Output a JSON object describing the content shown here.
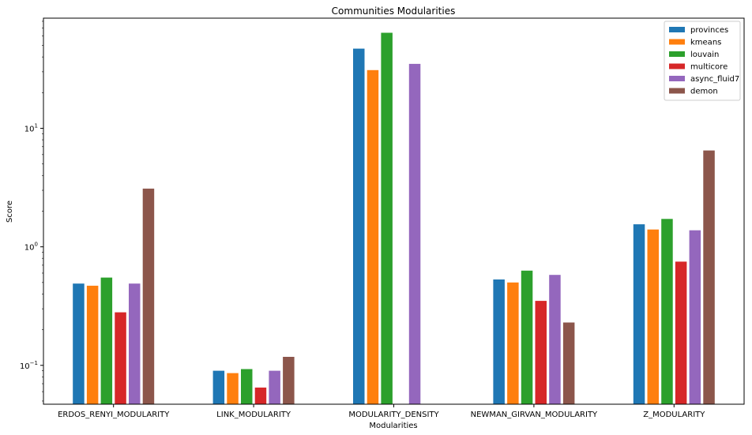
{
  "chart_data": {
    "type": "bar",
    "title": "Communities Modularities",
    "xlabel": "Modularities",
    "ylabel": "Score",
    "yscale": "log",
    "ylim": [
      0.047,
      85
    ],
    "yticks": [
      {
        "value": 0.1,
        "base": "10",
        "exp": "−1"
      },
      {
        "value": 1,
        "base": "10",
        "exp": "0"
      },
      {
        "value": 10,
        "base": "10",
        "exp": "1"
      }
    ],
    "categories": [
      "ERDOS_RENYI_MODULARITY",
      "LINK_MODULARITY",
      "MODULARITY_DENSITY",
      "NEWMAN_GIRVAN_MODULARITY",
      "Z_MODULARITY"
    ],
    "series": [
      {
        "name": "provinces",
        "color": "#1f77b4",
        "values": [
          0.49,
          0.09,
          47,
          0.53,
          1.55
        ]
      },
      {
        "name": "kmeans",
        "color": "#ff7f0e",
        "values": [
          0.47,
          0.086,
          31,
          0.5,
          1.4
        ]
      },
      {
        "name": "louvain",
        "color": "#2ca02c",
        "values": [
          0.55,
          0.093,
          64,
          0.63,
          1.72
        ]
      },
      {
        "name": "multicore",
        "color": "#d62728",
        "values": [
          0.28,
          0.065,
          null,
          0.35,
          0.75
        ]
      },
      {
        "name": "async_fluid7",
        "color": "#9467bd",
        "values": [
          0.49,
          0.09,
          35,
          0.58,
          1.38
        ]
      },
      {
        "name": "demon",
        "color": "#8c564b",
        "values": [
          3.1,
          0.118,
          null,
          0.23,
          6.5
        ]
      }
    ],
    "legend": "top-right",
    "grid": false
  }
}
